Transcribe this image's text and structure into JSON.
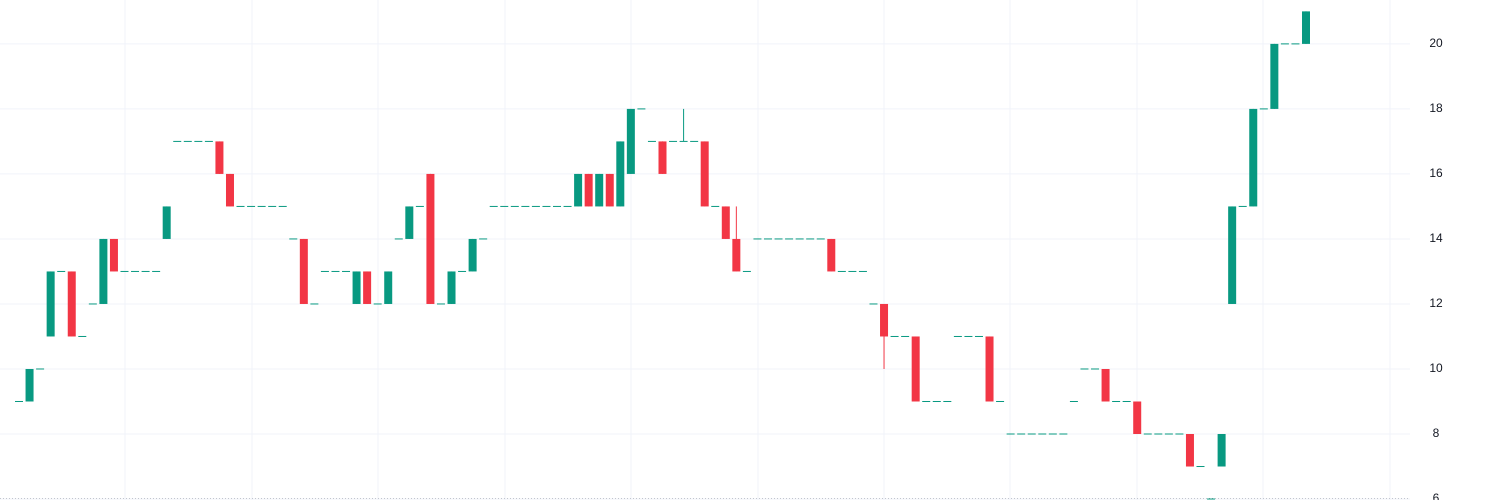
{
  "chart_data": {
    "type": "candlestick",
    "open": [
      9,
      9,
      10,
      11,
      13,
      13,
      11,
      12,
      12,
      14,
      13,
      13,
      13,
      13,
      14,
      17,
      17,
      17,
      17,
      17,
      16,
      15,
      15,
      15,
      15,
      15,
      14,
      14,
      12,
      13,
      13,
      13,
      12,
      13,
      12,
      12,
      14,
      14,
      15,
      16,
      12,
      12,
      13,
      13,
      14,
      15,
      15,
      15,
      15,
      15,
      15,
      15,
      15,
      15,
      16,
      15,
      16,
      15,
      16,
      18,
      17,
      17,
      17,
      17,
      17,
      17,
      15,
      15,
      14,
      13,
      14,
      14,
      14,
      14,
      14,
      14,
      14,
      14,
      13,
      13,
      13,
      12,
      12,
      11,
      11,
      11,
      9,
      9,
      9,
      11,
      11,
      11,
      11,
      9,
      8,
      8,
      8,
      8,
      8,
      8,
      9,
      10,
      10,
      10,
      9,
      9,
      9,
      8,
      8,
      8,
      8,
      8,
      7,
      6,
      7,
      12,
      15,
      15,
      18,
      18,
      20,
      20,
      20
    ],
    "high": [
      9,
      10,
      10,
      13,
      13,
      13,
      11,
      12,
      14,
      14,
      13,
      13,
      13,
      13,
      15,
      17,
      17,
      17,
      17,
      17,
      16,
      15,
      15,
      15,
      15,
      15,
      14,
      14,
      12,
      13,
      13,
      13,
      13,
      13,
      12,
      13,
      14,
      15,
      15,
      16,
      12,
      13,
      13,
      14,
      14,
      15,
      15,
      15,
      15,
      15,
      15,
      15,
      15,
      16,
      16,
      16,
      16,
      17,
      18,
      18,
      17,
      17,
      17,
      18,
      17,
      17,
      15,
      15,
      15,
      13,
      14,
      14,
      14,
      14,
      14,
      14,
      14,
      14,
      13,
      13,
      13,
      12,
      12,
      11,
      11,
      11,
      9,
      9,
      9,
      11,
      11,
      11,
      11,
      9,
      8,
      8,
      8,
      8,
      8,
      8,
      9,
      10,
      10,
      10,
      9,
      9,
      9,
      8,
      8,
      8,
      8,
      8,
      7,
      6,
      8,
      15,
      15,
      18,
      18,
      20,
      20,
      20,
      21
    ],
    "low": [
      9,
      9,
      10,
      11,
      13,
      11,
      11,
      12,
      12,
      13,
      13,
      13,
      13,
      13,
      14,
      17,
      17,
      17,
      17,
      16,
      15,
      15,
      15,
      15,
      15,
      15,
      14,
      12,
      12,
      13,
      13,
      13,
      12,
      12,
      12,
      12,
      14,
      14,
      15,
      12,
      12,
      12,
      13,
      13,
      14,
      15,
      15,
      15,
      15,
      15,
      15,
      15,
      15,
      15,
      15,
      15,
      15,
      15,
      16,
      18,
      17,
      16,
      17,
      17,
      17,
      15,
      15,
      14,
      13,
      13,
      14,
      14,
      14,
      14,
      14,
      14,
      14,
      13,
      13,
      13,
      13,
      12,
      10,
      11,
      11,
      9,
      9,
      9,
      9,
      11,
      11,
      11,
      9,
      9,
      8,
      8,
      8,
      8,
      8,
      8,
      9,
      10,
      10,
      9,
      9,
      9,
      8,
      8,
      8,
      8,
      8,
      7,
      7,
      6,
      7,
      12,
      15,
      15,
      18,
      18,
      20,
      20,
      20
    ],
    "close": [
      9,
      10,
      10,
      13,
      13,
      11,
      11,
      12,
      14,
      13,
      13,
      13,
      13,
      13,
      15,
      17,
      17,
      17,
      17,
      16,
      15,
      15,
      15,
      15,
      15,
      15,
      14,
      12,
      12,
      13,
      13,
      13,
      13,
      12,
      12,
      13,
      14,
      15,
      15,
      12,
      12,
      13,
      13,
      14,
      14,
      15,
      15,
      15,
      15,
      15,
      15,
      15,
      15,
      16,
      15,
      16,
      15,
      17,
      18,
      18,
      17,
      16,
      17,
      17,
      17,
      15,
      15,
      14,
      13,
      13,
      14,
      14,
      14,
      14,
      14,
      14,
      14,
      13,
      13,
      13,
      13,
      12,
      11,
      11,
      11,
      9,
      9,
      9,
      9,
      11,
      11,
      11,
      9,
      9,
      8,
      8,
      8,
      8,
      8,
      8,
      9,
      10,
      10,
      9,
      9,
      9,
      8,
      8,
      8,
      8,
      8,
      7,
      7,
      6,
      8,
      15,
      15,
      18,
      18,
      20,
      20,
      20,
      21
    ],
    "up_color": "#089981",
    "down_color": "#f23645",
    "ylim": [
      5.97,
      21.35
    ],
    "yticks": [
      6,
      8,
      10,
      12,
      14,
      16,
      18,
      20
    ],
    "grid": true
  }
}
